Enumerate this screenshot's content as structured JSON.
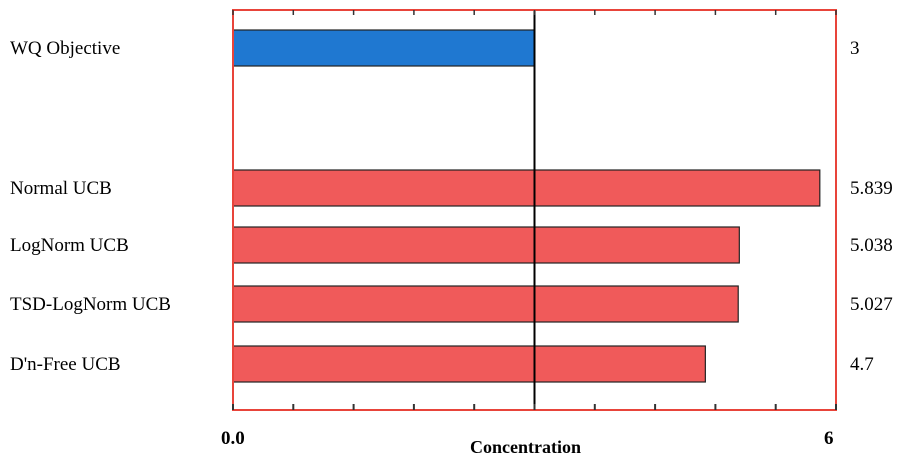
{
  "chart_data": {
    "type": "bar",
    "orientation": "horizontal",
    "categories": [
      "WQ Objective",
      "Normal UCB",
      "LogNorm UCB",
      "TSD-LogNorm UCB",
      "D'n-Free UCB"
    ],
    "values": [
      3,
      5.839,
      5.038,
      5.027,
      4.7
    ],
    "value_labels": [
      "3",
      "5.839",
      "5.038",
      "5.027",
      "4.7"
    ],
    "xlabel": "Concentration",
    "xlim": [
      0,
      6
    ],
    "x_tick_labels": [
      "0.0",
      "6"
    ],
    "reference_line": 3,
    "grid": false,
    "colors": {
      "objective_bar": "#1f78d1",
      "ucb_bar": "#f05a5a",
      "frame": "#e8443a",
      "reference_line": "#000000"
    }
  }
}
